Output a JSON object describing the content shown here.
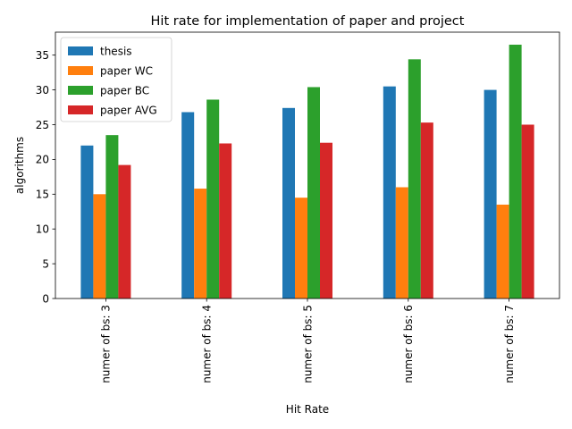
{
  "chart_data": {
    "type": "bar",
    "title": "Hit rate for implementation of paper and project",
    "xlabel": "Hit Rate",
    "ylabel": "algorithms",
    "categories": [
      "numer of bs: 3",
      "numer of bs: 4",
      "numer of bs: 5",
      "numer of bs: 6",
      "numer of bs: 7"
    ],
    "ylim": [
      0,
      38.3
    ],
    "yticks": [
      0,
      5,
      10,
      15,
      20,
      25,
      30,
      35
    ],
    "grid": false,
    "legend_position": "top-left",
    "series": [
      {
        "name": "thesis",
        "color": "#1f77b4",
        "values": [
          22.0,
          26.8,
          27.4,
          30.5,
          30.0
        ]
      },
      {
        "name": "paper WC",
        "color": "#ff7f0e",
        "values": [
          15.0,
          15.8,
          14.5,
          16.0,
          13.5
        ]
      },
      {
        "name": "paper BC",
        "color": "#2ca02c",
        "values": [
          23.5,
          28.6,
          30.4,
          34.4,
          36.5
        ]
      },
      {
        "name": "paper AVG",
        "color": "#d62728",
        "values": [
          19.2,
          22.3,
          22.4,
          25.3,
          25.0
        ]
      }
    ]
  }
}
